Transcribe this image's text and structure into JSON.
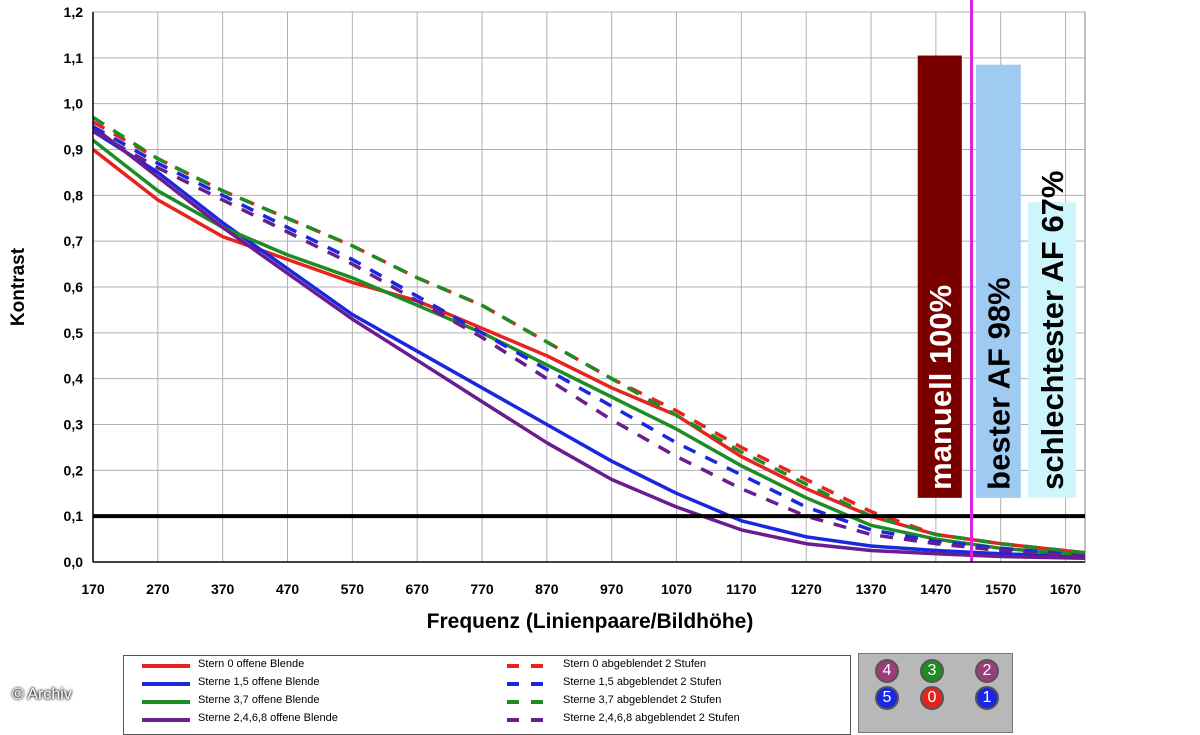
{
  "chart_data": {
    "type": "line",
    "title": "",
    "xlabel": "Frequenz (Linienpaare/Bildhöhe)",
    "ylabel": "Kontrast",
    "xlim": [
      170,
      1700
    ],
    "ylim": [
      0,
      1.2
    ],
    "xticks": [
      170,
      270,
      370,
      470,
      570,
      670,
      770,
      870,
      970,
      1070,
      1170,
      1270,
      1370,
      1470,
      1570,
      1670
    ],
    "yticks": [
      "0,0",
      "0,1",
      "0,2",
      "0,3",
      "0,4",
      "0,5",
      "0,6",
      "0,7",
      "0,8",
      "0,9",
      "1,0",
      "1,1",
      "1,2"
    ],
    "grid": true,
    "threshold": 0.1,
    "marker_x": 1525,
    "series": [
      {
        "name": "Stern 0 offene Blende",
        "color": "#e8221c",
        "dash": false,
        "x": [
          170,
          270,
          370,
          470,
          570,
          670,
          770,
          870,
          970,
          1070,
          1170,
          1270,
          1370,
          1470,
          1570,
          1700
        ],
        "y": [
          0.9,
          0.79,
          0.71,
          0.66,
          0.61,
          0.57,
          0.51,
          0.45,
          0.38,
          0.32,
          0.23,
          0.16,
          0.1,
          0.06,
          0.04,
          0.02
        ]
      },
      {
        "name": "Sterne 1,5 offene Blende",
        "color": "#1a27e0",
        "dash": false,
        "x": [
          170,
          270,
          370,
          470,
          570,
          670,
          770,
          870,
          970,
          1070,
          1170,
          1270,
          1370,
          1470,
          1570,
          1700
        ],
        "y": [
          0.94,
          0.85,
          0.74,
          0.64,
          0.54,
          0.46,
          0.38,
          0.3,
          0.22,
          0.15,
          0.09,
          0.055,
          0.035,
          0.025,
          0.018,
          0.012
        ]
      },
      {
        "name": "Sterne 3,7 offene Blende",
        "color": "#1e8c24",
        "dash": false,
        "x": [
          170,
          270,
          370,
          470,
          570,
          670,
          770,
          870,
          970,
          1070,
          1170,
          1270,
          1370,
          1470,
          1570,
          1700
        ],
        "y": [
          0.92,
          0.81,
          0.73,
          0.67,
          0.62,
          0.56,
          0.5,
          0.43,
          0.36,
          0.29,
          0.21,
          0.14,
          0.08,
          0.05,
          0.03,
          0.015
        ]
      },
      {
        "name": "Sterne 2,4,6,8 offene Blende",
        "color": "#6a1d8e",
        "dash": false,
        "x": [
          170,
          270,
          370,
          470,
          570,
          670,
          770,
          870,
          970,
          1070,
          1170,
          1270,
          1370,
          1470,
          1570,
          1700
        ],
        "y": [
          0.95,
          0.84,
          0.73,
          0.63,
          0.53,
          0.44,
          0.35,
          0.26,
          0.18,
          0.12,
          0.07,
          0.04,
          0.025,
          0.018,
          0.012,
          0.008
        ]
      },
      {
        "name": "Stern 0 abgeblendet 2 Stufen",
        "color": "#e8221c",
        "dash": true,
        "x": [
          170,
          270,
          370,
          470,
          570,
          670,
          770,
          870,
          970,
          1070,
          1170,
          1270,
          1370,
          1470,
          1570,
          1700
        ],
        "y": [
          0.96,
          0.88,
          0.81,
          0.75,
          0.69,
          0.62,
          0.56,
          0.48,
          0.4,
          0.33,
          0.25,
          0.18,
          0.11,
          0.06,
          0.04,
          0.02
        ]
      },
      {
        "name": "Sterne 1,5 abgeblendet 2 Stufen",
        "color": "#1a27e0",
        "dash": true,
        "x": [
          170,
          270,
          370,
          470,
          570,
          670,
          770,
          870,
          970,
          1070,
          1170,
          1270,
          1370,
          1470,
          1570,
          1700
        ],
        "y": [
          0.95,
          0.87,
          0.8,
          0.73,
          0.66,
          0.58,
          0.5,
          0.42,
          0.34,
          0.26,
          0.19,
          0.12,
          0.07,
          0.045,
          0.03,
          0.015
        ]
      },
      {
        "name": "Sterne 3,7 abgeblendet 2 Stufen",
        "color": "#1e8c24",
        "dash": true,
        "x": [
          170,
          270,
          370,
          470,
          570,
          670,
          770,
          870,
          970,
          1070,
          1170,
          1270,
          1370,
          1470,
          1570,
          1700
        ],
        "y": [
          0.97,
          0.88,
          0.81,
          0.75,
          0.69,
          0.62,
          0.56,
          0.48,
          0.4,
          0.32,
          0.24,
          0.17,
          0.1,
          0.06,
          0.04,
          0.02
        ]
      },
      {
        "name": "Sterne 2,4,6,8 abgeblendet 2 Stufen",
        "color": "#6a1d8e",
        "dash": true,
        "x": [
          170,
          270,
          370,
          470,
          570,
          670,
          770,
          870,
          970,
          1070,
          1170,
          1270,
          1370,
          1470,
          1570,
          1700
        ],
        "y": [
          0.94,
          0.86,
          0.79,
          0.72,
          0.65,
          0.57,
          0.49,
          0.4,
          0.31,
          0.23,
          0.16,
          0.1,
          0.06,
          0.04,
          0.025,
          0.012
        ]
      }
    ],
    "bars": [
      {
        "label": "manuell 100%",
        "x0": 1442,
        "x1": 1510,
        "y0": 0.14,
        "y1": 1.105,
        "color": "#7a0000",
        "text_color": "#ffffff"
      },
      {
        "label": "bester AF 98%",
        "x0": 1532,
        "x1": 1601,
        "y0": 0.14,
        "y1": 1.085,
        "color": "#9fcaf2",
        "text_color": "#000000"
      },
      {
        "label": "schlechtester AF 67%",
        "x0": 1612,
        "x1": 1686,
        "y0": 0.14,
        "y1": 0.785,
        "color": "#ccf6fb",
        "text_color": "#000000"
      }
    ]
  },
  "legend": {
    "items": [
      {
        "label": "Stern 0 offene Blende",
        "color": "#e8221c",
        "dash": false
      },
      {
        "label": "Sterne 1,5 offene Blende",
        "color": "#1a27e0",
        "dash": false
      },
      {
        "label": "Sterne 3,7 offene Blende",
        "color": "#1e8c24",
        "dash": false
      },
      {
        "label": "Sterne 2,4,6,8 offene Blende",
        "color": "#6a1d8e",
        "dash": false
      },
      {
        "label": "Stern 0 abgeblendet 2 Stufen",
        "color": "#e8221c",
        "dash": true
      },
      {
        "label": "Sterne 1,5 abgeblendet 2 Stufen",
        "color": "#1a27e0",
        "dash": true
      },
      {
        "label": "Sterne 3,7 abgeblendet 2 Stufen",
        "color": "#1e8c24",
        "dash": true
      },
      {
        "label": "Sterne 2,4,6,8 abgeblendet 2 Stufen",
        "color": "#6a1d8e",
        "dash": true
      }
    ]
  },
  "star_panel": {
    "stars": [
      {
        "label": "4",
        "color": "#9b3b7a"
      },
      {
        "label": "3",
        "color": "#1e8c24"
      },
      {
        "label": "2",
        "color": "#9b3b7a"
      },
      {
        "label": "5",
        "color": "#1a27e0"
      },
      {
        "label": "0",
        "color": "#e8221c"
      },
      {
        "label": "1",
        "color": "#1a27e0"
      }
    ]
  },
  "watermark": "© Archiv"
}
